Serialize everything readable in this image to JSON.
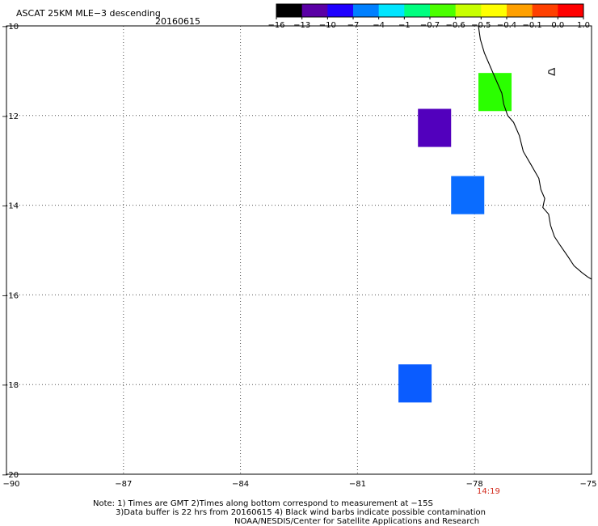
{
  "header": {
    "title": "ASCAT 25KM MLE−3 descending",
    "date": "20160615"
  },
  "colorbar": {
    "labels": [
      "−16",
      "−13",
      "−10",
      "−7",
      "−4",
      "−1",
      "−0.7",
      "−0.6",
      "−0.5",
      "−0.4",
      "−0.1",
      "0.0",
      "1.0"
    ],
    "colors": [
      "#000000",
      "#5a00a5",
      "#1f00ff",
      "#0080ff",
      "#00e5ff",
      "#00ff80",
      "#4bff00",
      "#c8ff00",
      "#ffff00",
      "#ffa000",
      "#ff4000",
      "#ff0000"
    ]
  },
  "map": {
    "lat_range": [
      -20,
      -10
    ],
    "lon_range": [
      -90,
      -75
    ],
    "lat_labels": [
      {
        "value": -10,
        "text": "−10"
      },
      {
        "value": -12,
        "text": "−12"
      },
      {
        "value": -14,
        "text": "−14"
      },
      {
        "value": -16,
        "text": "−16"
      },
      {
        "value": -18,
        "text": "−18"
      },
      {
        "value": -20,
        "text": "−20"
      }
    ],
    "lon_labels": [
      {
        "value": -90,
        "text": "−90"
      },
      {
        "value": -87,
        "text": "−87"
      },
      {
        "value": -84,
        "text": "−84"
      },
      {
        "value": -81,
        "text": "−81"
      },
      {
        "value": -78,
        "text": "−78"
      },
      {
        "value": -75,
        "text": "−75"
      }
    ],
    "time_label": "14:19",
    "cells": [
      {
        "lon": [
          -77.9,
          -77.05
        ],
        "lat": [
          -11.9,
          -11.05
        ],
        "color": "#2bff00"
      },
      {
        "lon": [
          -79.45,
          -78.6
        ],
        "lat": [
          -12.7,
          -11.85
        ],
        "color": "#5200bd"
      },
      {
        "lon": [
          -78.6,
          -77.75
        ],
        "lat": [
          -14.2,
          -13.35
        ],
        "color": "#0a6cff"
      },
      {
        "lon": [
          -79.95,
          -79.1
        ],
        "lat": [
          -18.4,
          -17.55
        ],
        "color": "#0a5cff"
      }
    ],
    "coastline": [
      [
        -77.9,
        -10.0
      ],
      [
        -77.85,
        -10.3
      ],
      [
        -77.75,
        -10.6
      ],
      [
        -77.6,
        -10.9
      ],
      [
        -77.45,
        -11.2
      ],
      [
        -77.3,
        -11.5
      ],
      [
        -77.25,
        -11.75
      ],
      [
        -77.15,
        -12.0
      ],
      [
        -77.0,
        -12.15
      ],
      [
        -76.85,
        -12.45
      ],
      [
        -76.75,
        -12.8
      ],
      [
        -76.55,
        -13.1
      ],
      [
        -76.35,
        -13.4
      ],
      [
        -76.3,
        -13.65
      ],
      [
        -76.2,
        -13.85
      ],
      [
        -76.25,
        -14.05
      ],
      [
        -76.1,
        -14.2
      ],
      [
        -76.05,
        -14.45
      ],
      [
        -75.95,
        -14.7
      ],
      [
        -75.8,
        -14.9
      ],
      [
        -75.6,
        -15.15
      ],
      [
        -75.45,
        -15.35
      ],
      [
        -75.25,
        -15.5
      ],
      [
        -75.1,
        -15.6
      ],
      [
        -75.0,
        -15.65
      ]
    ],
    "island": [
      [
        -76.1,
        -11.0
      ],
      [
        -75.95,
        -10.95
      ],
      [
        -75.95,
        -11.1
      ],
      [
        -76.1,
        -11.05
      ],
      [
        -76.1,
        -11.0
      ]
    ]
  },
  "footer": {
    "line1": "Note: 1) Times are GMT 2)Times along bottom correspond to measurement at −15S",
    "line2": "3)Data buffer is 22 hrs from 20160615 4) Black wind barbs indicate possible contamination",
    "line3": "NOAA/NESDIS/Center for Satellite Applications and Research"
  }
}
